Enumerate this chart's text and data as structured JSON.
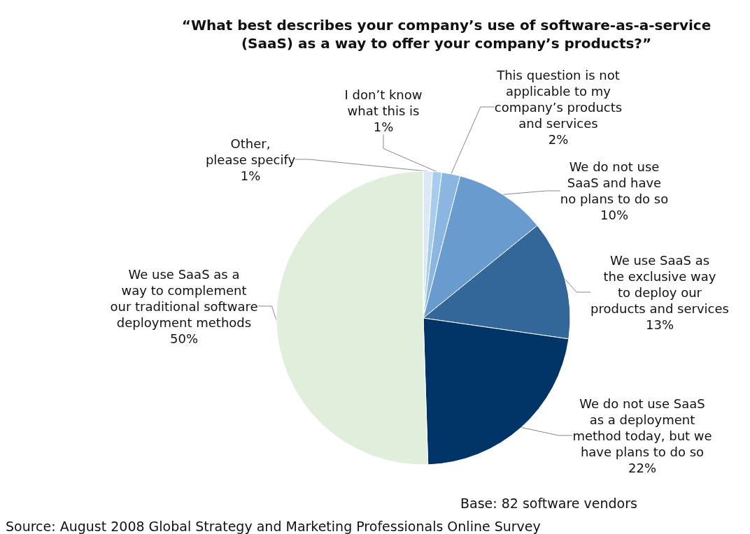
{
  "chart_data": {
    "type": "pie",
    "title": "“What best describes your company’s use of software-as-a-service\n(SaaS) as a way to offer your company’s products?”",
    "categories": [
      "Other,\nplease specify",
      "I don’t know\nwhat this is",
      "This question is not\napplicable to my\ncompany’s products\nand services",
      "We do not use\nSaaS and have\nno plans to do so",
      "We use SaaS as\nthe exclusive way\nto deploy our\nproducts and services",
      "We do not use SaaS\nas a deployment\nmethod today, but we\nhave plans to do so",
      "We use SaaS as a\nway to complement\nour traditional software\ndeployment methods"
    ],
    "values": [
      1,
      1,
      2,
      10,
      13,
      22,
      50
    ],
    "value_labels": [
      "1%",
      "1%",
      "2%",
      "10%",
      "13%",
      "22%",
      "50%"
    ],
    "colors": [
      "#dbe8f6",
      "#a8ccee",
      "#8cb6e2",
      "#6a9bcf",
      "#336699",
      "#003366",
      "#e0eedb"
    ],
    "legend": false,
    "annotations": [
      "Base: 82 software vendors",
      "Source: August 2008 Global Strategy and Marketing Professionals Online Survey"
    ]
  }
}
